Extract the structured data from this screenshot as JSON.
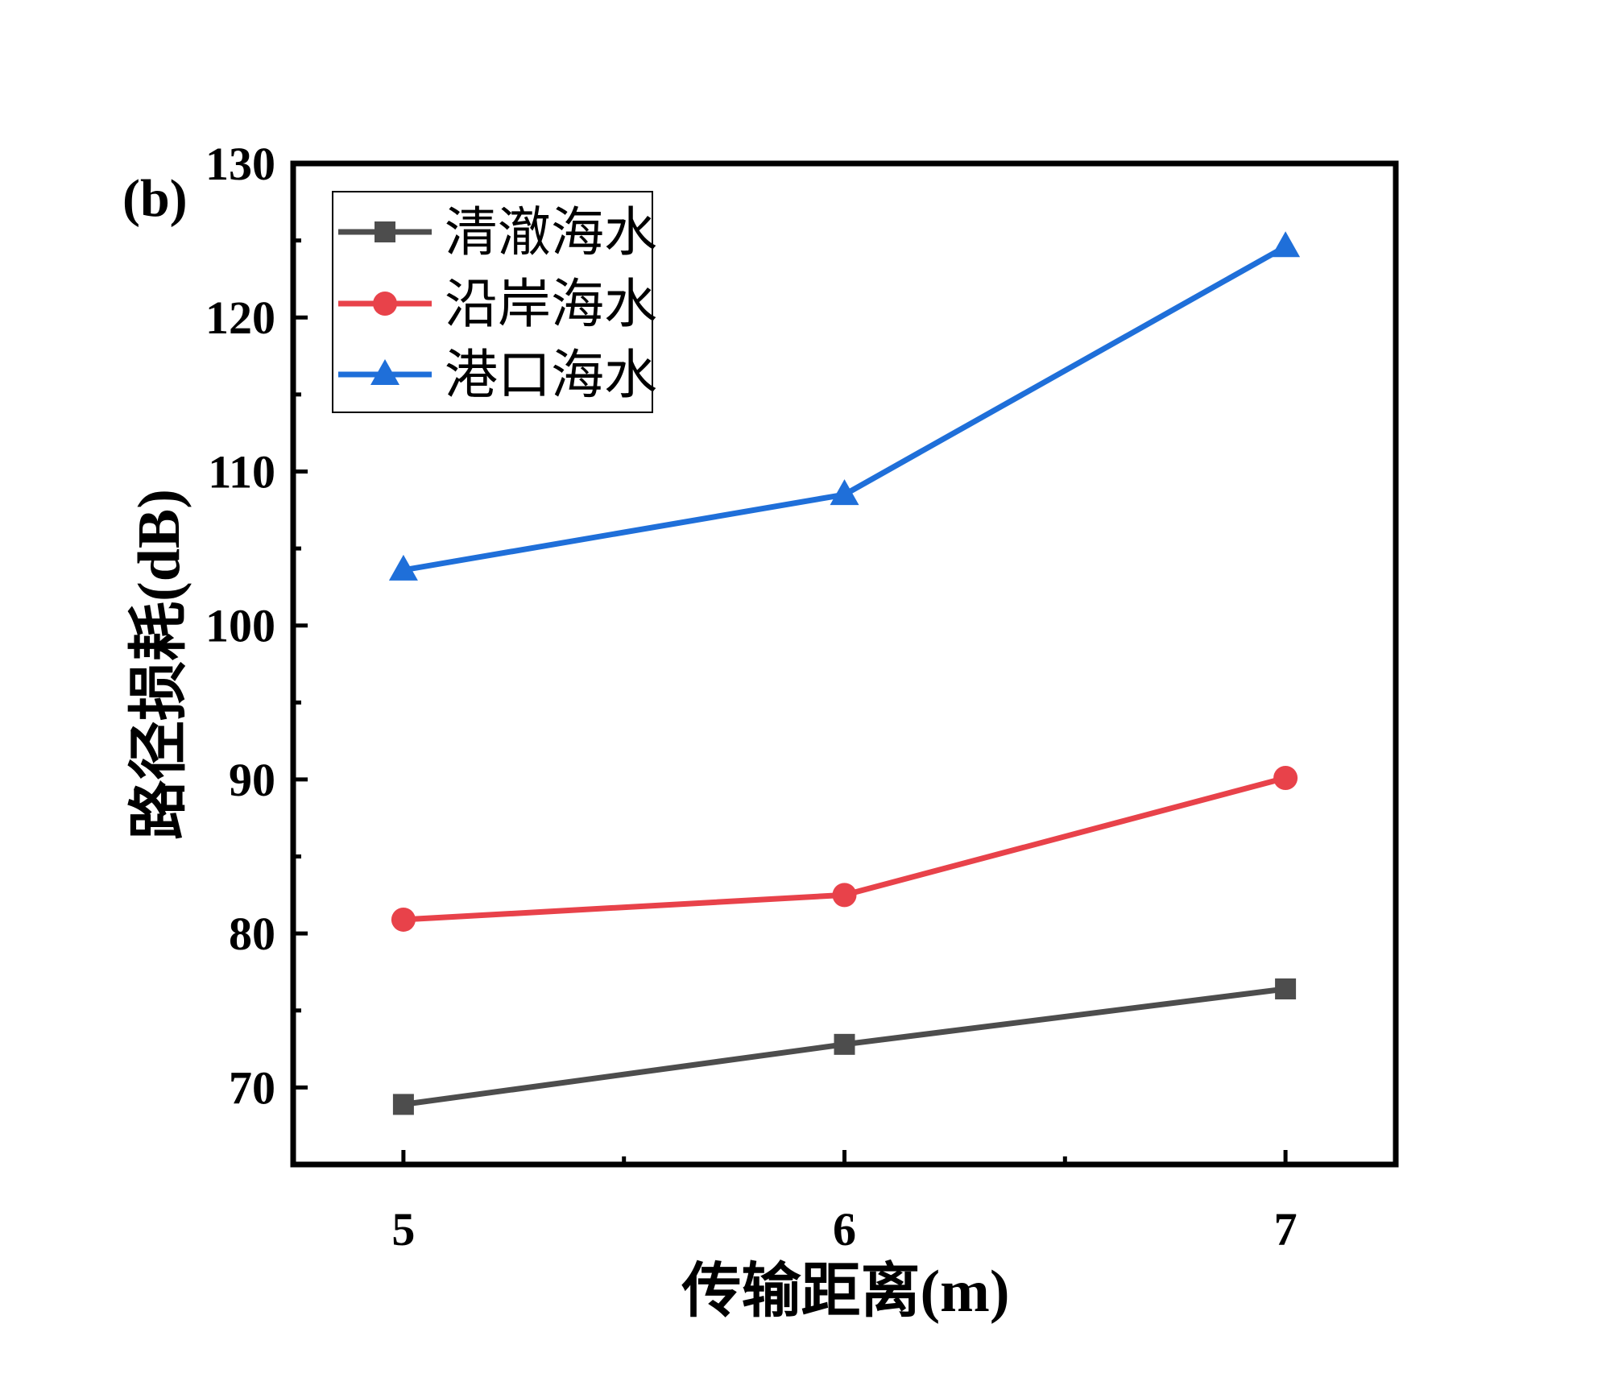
{
  "panel_label": "(b)",
  "colors": {
    "clear": "#4d4d4d",
    "coastal": "#e8424a",
    "harbor": "#1f6fd9",
    "axis": "#000000"
  },
  "chart_data": {
    "type": "line",
    "title": "",
    "xlabel": "传输距离(m)",
    "ylabel": "路径损耗(dB)",
    "x": [
      5,
      6,
      7
    ],
    "xlim": [
      4.75,
      7.25
    ],
    "ylim": [
      65,
      130
    ],
    "xticks": [
      5,
      6,
      7
    ],
    "yticks": [
      70,
      80,
      90,
      100,
      110,
      120,
      130
    ],
    "grid": false,
    "legend_position": "top-left",
    "series": [
      {
        "name": "清澈海水",
        "marker": "square",
        "color": "#4d4d4d",
        "values": [
          68.9,
          72.8,
          76.4
        ]
      },
      {
        "name": "沿岸海水",
        "marker": "circle",
        "color": "#e8424a",
        "values": [
          80.9,
          82.5,
          90.1
        ]
      },
      {
        "name": "港口海水",
        "marker": "triangle",
        "color": "#1f6fd9",
        "values": [
          103.6,
          108.5,
          124.6
        ]
      }
    ]
  }
}
